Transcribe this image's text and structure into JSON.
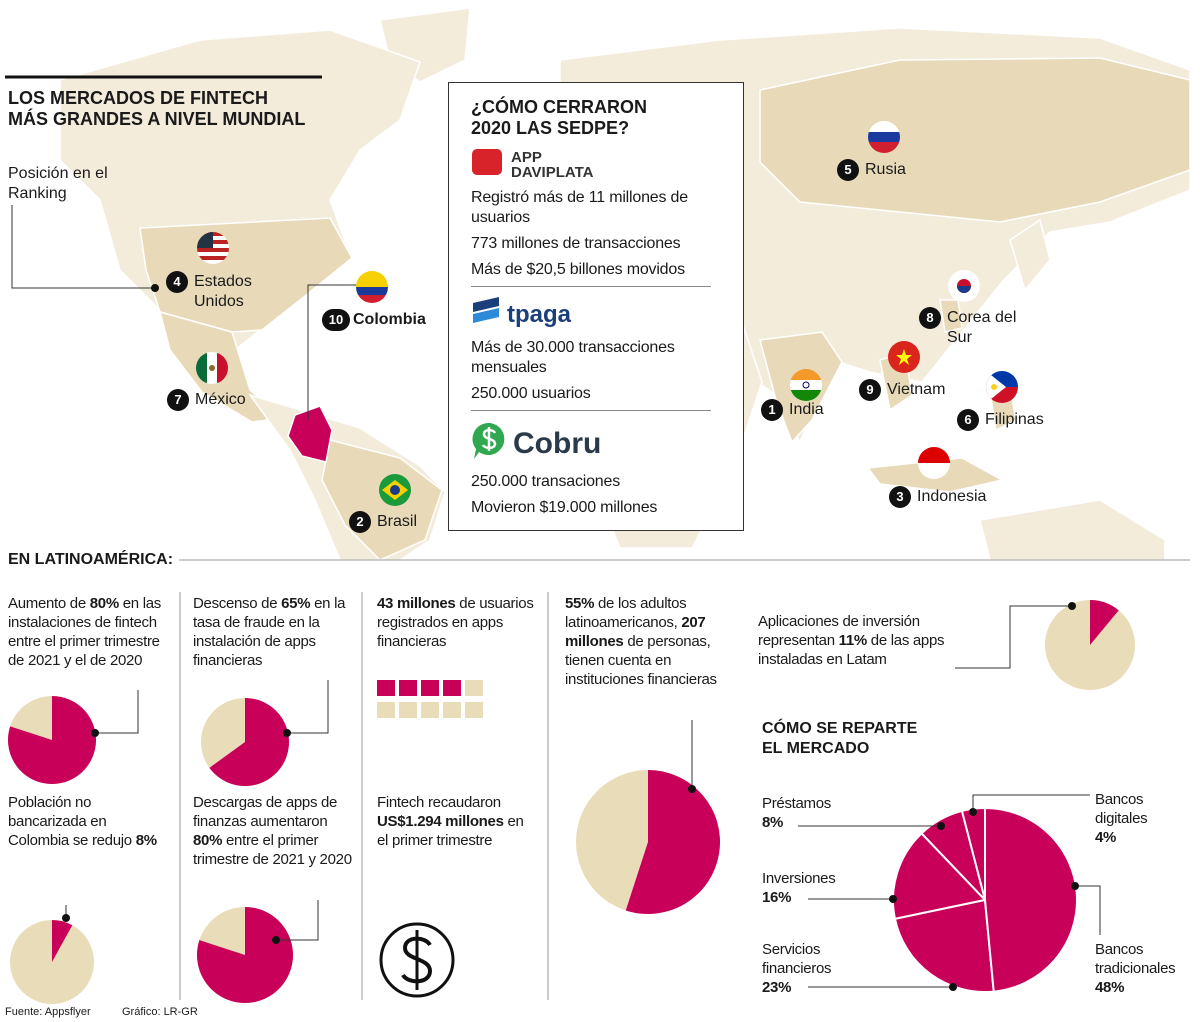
{
  "header": {
    "title_lines": [
      "LOS MERCADOS DE FINTECH",
      "MÁS GRANDES A NIVEL MUNDIAL"
    ],
    "ranking_label": "Posición en el Ranking"
  },
  "map": {
    "countries": [
      {
        "rank": 4,
        "name": "Estados Unidos"
      },
      {
        "rank": 10,
        "name": "Colombia"
      },
      {
        "rank": 7,
        "name": "México"
      },
      {
        "rank": 2,
        "name": "Brasil"
      },
      {
        "rank": 5,
        "name": "Rusia"
      },
      {
        "rank": 8,
        "name": "Corea del Sur"
      },
      {
        "rank": 9,
        "name": "Vietnam"
      },
      {
        "rank": 1,
        "name": "India"
      },
      {
        "rank": 6,
        "name": "Filipinas"
      },
      {
        "rank": 3,
        "name": "Indonesia"
      }
    ]
  },
  "sedpe": {
    "title_lines": [
      "¿CÓMO CERRARON",
      "2020 LAS SEDPE?"
    ],
    "apps": [
      {
        "logo": "APP DAVIPLATA",
        "facts": [
          "Registró más de 11 millones de usuarios",
          "773 millones de transacciones",
          "Más de $20,5 billones movidos"
        ]
      },
      {
        "logo": "tpaga",
        "facts": [
          "Más de 30.000 transacciones mensuales",
          "250.000 usuarios"
        ]
      },
      {
        "logo": "Cobru",
        "facts": [
          "250.000 transaciones",
          "Movieron $19.000 millones"
        ]
      }
    ]
  },
  "latam": {
    "heading": "EN LATINOAMÉRICA:",
    "notes": [
      [
        {
          "b": "43 millones"
        },
        " de usuarios registrados en apps financieras"
      ],
      [
        "Fintech recaudaron ",
        {
          "b": "US$1.294 millones"
        },
        " en el primer trimestre"
      ]
    ]
  },
  "chart_data": [
    {
      "type": "pie",
      "caption": [
        "Aumento de ",
        {
          "b": "80%"
        },
        " en las instalaciones de fintech entre el primer trimestre de 2021 y el de 2020"
      ],
      "values": [
        80
      ],
      "color": "#c8005a",
      "base_color": "#e9dcb8"
    },
    {
      "type": "pie",
      "caption": [
        "Población no bancarizada en Colombia se redujo ",
        {
          "b": "8%"
        }
      ],
      "values": [
        8
      ],
      "color": "#c8005a",
      "base_color": "#e9dcb8"
    },
    {
      "type": "pie",
      "caption": [
        "Descenso de ",
        {
          "b": "65%"
        },
        " en la tasa de fraude en la instalación de apps financieras"
      ],
      "values": [
        65
      ],
      "color": "#c8005a",
      "base_color": "#e9dcb8"
    },
    {
      "type": "pie",
      "caption": [
        "Descargas de apps de finanzas aumentaron ",
        {
          "b": "80%"
        },
        " entre el primer trimestre de 2021 y 2020"
      ],
      "values": [
        80
      ],
      "color": "#c8005a",
      "base_color": "#e9dcb8"
    },
    {
      "type": "pie",
      "caption": [
        {
          "b": "55%"
        },
        " de los adultos latinoamericanos, ",
        {
          "b": "207 millones"
        },
        " de personas, tienen cuenta en instituciones financieras"
      ],
      "values": [
        55
      ],
      "color": "#c8005a",
      "base_color": "#e9dcb8"
    },
    {
      "type": "pie",
      "caption": [
        "Aplicaciones de inversión representan ",
        {
          "b": "11%"
        },
        " de las apps instaladas en Latam"
      ],
      "values": [
        11
      ],
      "color": "#c8005a",
      "base_color": "#e9dcb8"
    },
    {
      "type": "market-pie",
      "title": "CÓMO SE REPARTE EL MERCADO",
      "categories": [
        "Bancos digitales",
        "Préstamos",
        "Inversiones",
        "Servicios financieros",
        "Bancos tradicionales"
      ],
      "values": [
        4,
        8,
        16,
        23,
        48
      ],
      "value_labels": [
        "4%",
        "8%",
        "16%",
        "23%",
        "48%"
      ],
      "color": "#c8005a",
      "direction": "counterclockwise"
    }
  ],
  "footer": {
    "source": "Fuente: Appsflyer",
    "credit": "Gráfico: LR-GR"
  }
}
